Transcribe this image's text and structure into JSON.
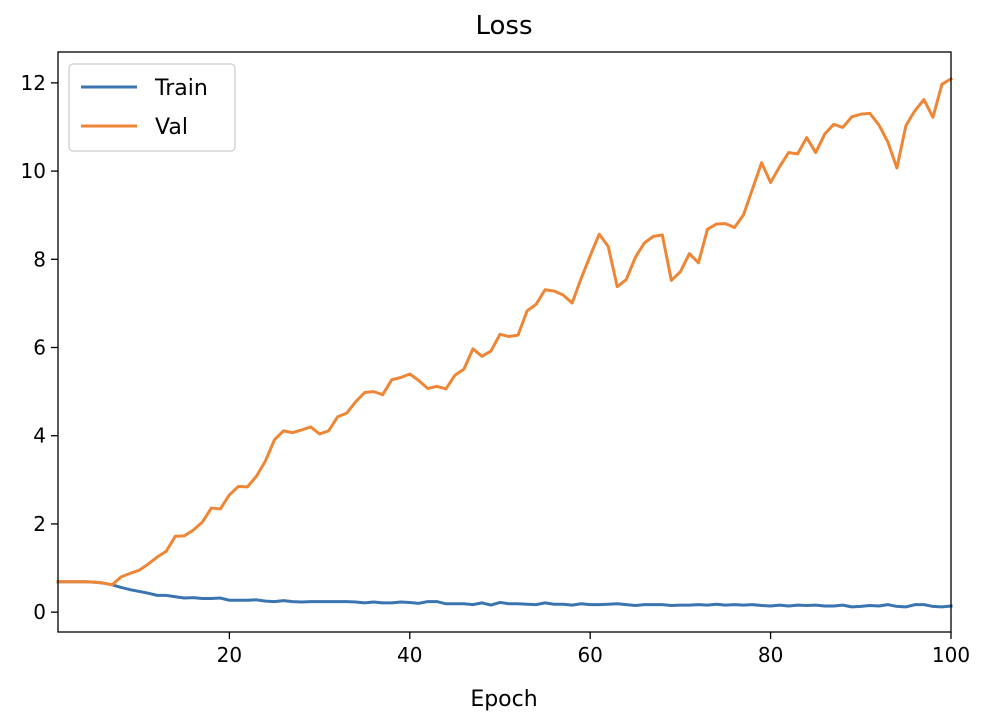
{
  "chart_data": {
    "type": "line",
    "title": "Loss",
    "xlabel": "Epoch",
    "ylabel": "",
    "xlim": [
      1,
      100
    ],
    "ylim": [
      -0.45,
      12.7
    ],
    "xticks": [
      20,
      40,
      60,
      80,
      100
    ],
    "yticks": [
      0,
      2,
      4,
      6,
      8,
      10,
      12
    ],
    "grid": false,
    "legend_position": "top-left",
    "x": [
      1,
      2,
      3,
      4,
      5,
      6,
      7,
      8,
      9,
      10,
      11,
      12,
      13,
      14,
      15,
      16,
      17,
      18,
      19,
      20,
      21,
      22,
      23,
      24,
      25,
      26,
      27,
      28,
      29,
      30,
      31,
      32,
      33,
      34,
      35,
      36,
      37,
      38,
      39,
      40,
      41,
      42,
      43,
      44,
      45,
      46,
      47,
      48,
      49,
      50,
      51,
      52,
      53,
      54,
      55,
      56,
      57,
      58,
      59,
      60,
      61,
      62,
      63,
      64,
      65,
      66,
      67,
      68,
      69,
      70,
      71,
      72,
      73,
      74,
      75,
      76,
      77,
      78,
      79,
      80,
      81,
      82,
      83,
      84,
      85,
      86,
      87,
      88,
      89,
      90,
      91,
      92,
      93,
      94,
      95,
      96,
      97,
      98,
      99,
      100
    ],
    "series": [
      {
        "name": "Train",
        "color": "#3a75b0",
        "values": [
          0.69,
          0.69,
          0.69,
          0.69,
          0.68,
          0.66,
          0.62,
          0.56,
          0.51,
          0.47,
          0.43,
          0.38,
          0.38,
          0.35,
          0.32,
          0.33,
          0.31,
          0.31,
          0.32,
          0.27,
          0.27,
          0.27,
          0.28,
          0.25,
          0.24,
          0.26,
          0.24,
          0.23,
          0.24,
          0.24,
          0.24,
          0.24,
          0.24,
          0.23,
          0.21,
          0.23,
          0.21,
          0.21,
          0.23,
          0.22,
          0.2,
          0.24,
          0.24,
          0.19,
          0.19,
          0.19,
          0.17,
          0.21,
          0.16,
          0.22,
          0.19,
          0.19,
          0.18,
          0.17,
          0.21,
          0.18,
          0.18,
          0.16,
          0.19,
          0.17,
          0.17,
          0.18,
          0.19,
          0.17,
          0.15,
          0.17,
          0.17,
          0.17,
          0.15,
          0.16,
          0.16,
          0.17,
          0.16,
          0.18,
          0.16,
          0.17,
          0.16,
          0.17,
          0.15,
          0.14,
          0.16,
          0.14,
          0.16,
          0.15,
          0.16,
          0.14,
          0.14,
          0.16,
          0.12,
          0.13,
          0.15,
          0.14,
          0.17,
          0.13,
          0.12,
          0.17,
          0.17,
          0.13,
          0.12,
          0.14
        ]
      },
      {
        "name": "Val",
        "color": "#ef8636",
        "values": [
          0.69,
          0.69,
          0.69,
          0.69,
          0.68,
          0.66,
          0.62,
          0.8,
          0.88,
          0.95,
          1.09,
          1.25,
          1.38,
          1.72,
          1.73,
          1.86,
          2.04,
          2.36,
          2.34,
          2.66,
          2.85,
          2.84,
          3.08,
          3.43,
          3.91,
          4.11,
          4.07,
          4.13,
          4.2,
          4.04,
          4.11,
          4.43,
          4.51,
          4.77,
          4.98,
          5.0,
          4.93,
          5.27,
          5.32,
          5.4,
          5.25,
          5.07,
          5.12,
          5.06,
          5.37,
          5.51,
          5.97,
          5.8,
          5.92,
          6.3,
          6.25,
          6.28,
          6.83,
          6.98,
          7.31,
          7.28,
          7.19,
          7.01,
          7.57,
          8.08,
          8.57,
          8.29,
          7.38,
          7.54,
          8.04,
          8.37,
          8.52,
          8.55,
          7.52,
          7.72,
          8.13,
          7.92,
          8.68,
          8.8,
          8.81,
          8.72,
          9.01,
          9.6,
          10.19,
          9.74,
          10.1,
          10.42,
          10.39,
          10.76,
          10.42,
          10.84,
          11.06,
          10.99,
          11.23,
          11.29,
          11.31,
          11.05,
          10.66,
          10.07,
          11.03,
          11.37,
          11.62,
          11.22,
          11.97,
          12.09
        ]
      }
    ]
  }
}
